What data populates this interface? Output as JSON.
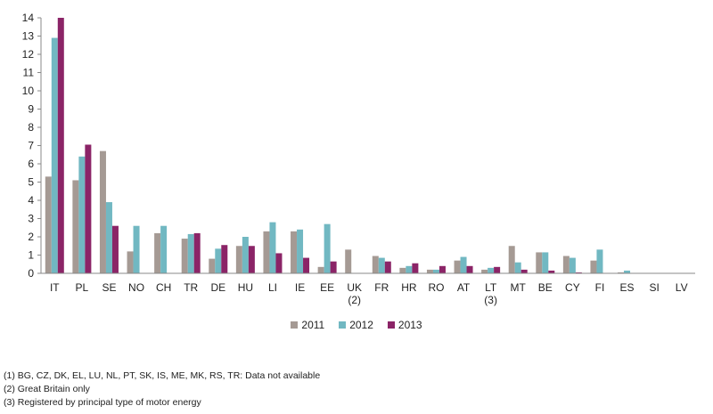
{
  "chart_data": {
    "type": "bar",
    "title": "",
    "xlabel": "",
    "ylabel": "",
    "ylim": [
      0,
      14
    ],
    "yticks": [
      0,
      1,
      2,
      3,
      4,
      5,
      6,
      7,
      8,
      9,
      10,
      11,
      12,
      13,
      14
    ],
    "grid": false,
    "legend_position": "bottom",
    "categories": [
      [
        "IT"
      ],
      [
        "PL"
      ],
      [
        "SE"
      ],
      [
        "NO"
      ],
      [
        "CH"
      ],
      [
        "TR"
      ],
      [
        "DE"
      ],
      [
        "HU"
      ],
      [
        "LI"
      ],
      [
        "IE"
      ],
      [
        "EE"
      ],
      [
        "UK",
        "(2)"
      ],
      [
        "FR"
      ],
      [
        "HR"
      ],
      [
        "RO"
      ],
      [
        "AT"
      ],
      [
        "LT",
        "(3)"
      ],
      [
        "MT"
      ],
      [
        "BE"
      ],
      [
        "CY"
      ],
      [
        "FI"
      ],
      [
        "ES"
      ],
      [
        "SI"
      ],
      [
        "LV"
      ]
    ],
    "series": [
      {
        "name": "2011",
        "color": "#a59a94",
        "values": [
          5.3,
          5.1,
          6.7,
          1.2,
          2.2,
          1.9,
          0.8,
          1.5,
          2.3,
          2.3,
          0.35,
          1.3,
          0.95,
          0.3,
          0.2,
          0.7,
          0.2,
          1.5,
          1.15,
          0.95,
          0.7,
          0.05,
          0,
          0
        ]
      },
      {
        "name": "2012",
        "color": "#71b8c2",
        "values": [
          12.9,
          6.4,
          3.9,
          2.6,
          2.6,
          2.15,
          1.35,
          2.0,
          2.8,
          2.4,
          2.7,
          0,
          0.85,
          0.4,
          0.2,
          0.9,
          0.3,
          0.6,
          1.15,
          0.85,
          1.3,
          0.15,
          0,
          0
        ]
      },
      {
        "name": "2013",
        "color": "#8b2467",
        "values": [
          14.0,
          7.05,
          2.6,
          0,
          0,
          2.2,
          1.55,
          1.5,
          1.1,
          0.85,
          0.65,
          0,
          0.65,
          0.55,
          0.4,
          0.4,
          0.35,
          0.2,
          0.15,
          0.05,
          0,
          0,
          0,
          0
        ]
      }
    ]
  },
  "notes": [
    "(1) BG, CZ, DK, EL, LU, NL, PT, SK, IS, ME, MK, RS, TR: Data not available",
    "(2) Great Britain only",
    "(3) Registered by principal type of motor energy"
  ]
}
